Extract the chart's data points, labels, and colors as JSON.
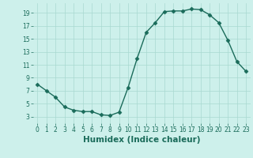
{
  "x": [
    0,
    1,
    2,
    3,
    4,
    5,
    6,
    7,
    8,
    9,
    10,
    11,
    12,
    13,
    14,
    15,
    16,
    17,
    18,
    19,
    20,
    21,
    22,
    23
  ],
  "y": [
    8,
    7,
    6,
    4.5,
    4,
    3.8,
    3.8,
    3.3,
    3.2,
    3.7,
    7.5,
    12,
    16,
    17.5,
    19.2,
    19.3,
    19.3,
    19.6,
    19.5,
    18.7,
    17.5,
    14.8,
    11.5,
    10
  ],
  "line_color": "#1a6b5a",
  "marker": "D",
  "markersize": 2.5,
  "linewidth": 1.0,
  "bg_color": "#cdf0eb",
  "grid_color": "#a8d8d0",
  "xlabel": "Humidex (Indice chaleur)",
  "xlim": [
    -0.5,
    23.5
  ],
  "ylim": [
    2,
    20.5
  ],
  "yticks": [
    3,
    5,
    7,
    9,
    11,
    13,
    15,
    17,
    19
  ],
  "xticks": [
    0,
    1,
    2,
    3,
    4,
    5,
    6,
    7,
    8,
    9,
    10,
    11,
    12,
    13,
    14,
    15,
    16,
    17,
    18,
    19,
    20,
    21,
    22,
    23
  ],
  "tick_fontsize": 5.5,
  "xlabel_fontsize": 7.5
}
